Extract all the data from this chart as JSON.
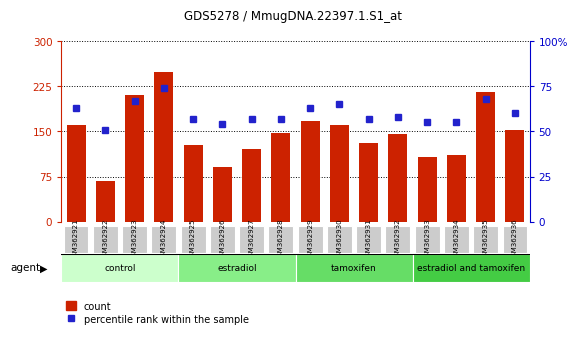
{
  "title": "GDS5278 / MmugDNA.22397.1.S1_at",
  "samples": [
    "GSM362921",
    "GSM362922",
    "GSM362923",
    "GSM362924",
    "GSM362925",
    "GSM362926",
    "GSM362927",
    "GSM362928",
    "GSM362929",
    "GSM362930",
    "GSM362931",
    "GSM362932",
    "GSM362933",
    "GSM362934",
    "GSM362935",
    "GSM362936"
  ],
  "counts": [
    160,
    68,
    210,
    248,
    128,
    90,
    120,
    148,
    168,
    160,
    130,
    145,
    108,
    110,
    215,
    153
  ],
  "percentile_ranks": [
    63,
    51,
    67,
    74,
    57,
    54,
    57,
    57,
    63,
    65,
    57,
    58,
    55,
    55,
    68,
    60
  ],
  "bar_color": "#cc2200",
  "dot_color": "#2222cc",
  "ylim_left": [
    0,
    300
  ],
  "ylim_right": [
    0,
    100
  ],
  "yticks_left": [
    0,
    75,
    150,
    225,
    300
  ],
  "yticks_right": [
    0,
    25,
    50,
    75,
    100
  ],
  "groups": [
    {
      "label": "control",
      "start": 0,
      "end": 4,
      "color": "#ccffcc"
    },
    {
      "label": "estradiol",
      "start": 4,
      "end": 8,
      "color": "#88ee88"
    },
    {
      "label": "tamoxifen",
      "start": 8,
      "end": 12,
      "color": "#66dd66"
    },
    {
      "label": "estradiol and tamoxifen",
      "start": 12,
      "end": 16,
      "color": "#44cc44"
    }
  ],
  "agent_label": "agent",
  "legend_count_label": "count",
  "legend_percentile_label": "percentile rank within the sample",
  "left_axis_color": "#cc2200",
  "right_axis_color": "#0000cc",
  "tick_bg_color": "#cccccc",
  "grid_color": "black"
}
